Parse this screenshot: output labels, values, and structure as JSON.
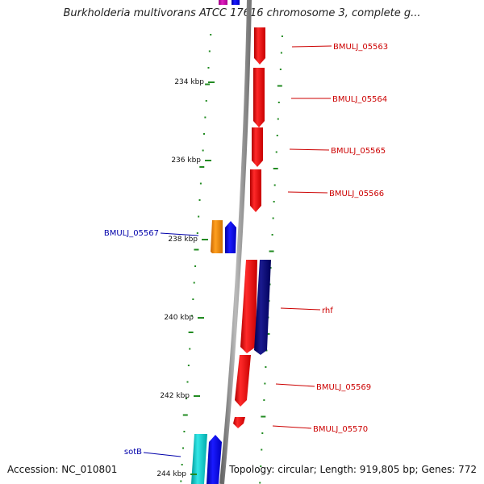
{
  "title": "Burkholderia multivorans ATCC 17616 chromosome 3, complete g...",
  "footer": {
    "accession": "Accession: NC_010801",
    "topology": "Topology: circular; Length: 919,805 bp; Genes: 772"
  },
  "ticks": [
    {
      "label": "234 kbp",
      "position_kbp": 234
    },
    {
      "label": "236 kbp",
      "position_kbp": 236
    },
    {
      "label": "238 kbp",
      "position_kbp": 238
    },
    {
      "label": "240 kbp",
      "position_kbp": 240
    },
    {
      "label": "242 kbp",
      "position_kbp": 242
    },
    {
      "label": "244 kbp",
      "position_kbp": 244
    }
  ],
  "gene_labels": [
    {
      "id": "BMULJ_05563",
      "text": "BMULJ_05563",
      "side": "right",
      "color": "#cc0000"
    },
    {
      "id": "BMULJ_05564",
      "text": "BMULJ_05564",
      "side": "right",
      "color": "#cc0000"
    },
    {
      "id": "BMULJ_05565",
      "text": "BMULJ_05565",
      "side": "right",
      "color": "#cc0000"
    },
    {
      "id": "BMULJ_05566",
      "text": "BMULJ_05566",
      "side": "right",
      "color": "#cc0000"
    },
    {
      "id": "BMULJ_05567",
      "text": "BMULJ_05567",
      "side": "left",
      "color": "#0000aa"
    },
    {
      "id": "rhf",
      "text": "rhf",
      "side": "right",
      "color": "#cc0000"
    },
    {
      "id": "BMULJ_05569",
      "text": "BMULJ_05569",
      "side": "right",
      "color": "#cc0000"
    },
    {
      "id": "BMULJ_05570",
      "text": "BMULJ_05570",
      "side": "right",
      "color": "#cc0000"
    },
    {
      "id": "sotB",
      "text": "sotB",
      "side": "left",
      "color": "#0000aa"
    }
  ],
  "colors": {
    "backbone": "#888888",
    "forward_gene": "#ff0000",
    "reverse_gene_blue": "#0000ff",
    "reverse_gene_navy": "#000080",
    "gene_orange": "#ff8c00",
    "gene_cyan": "#00cccc",
    "gene_magenta": "#cc00aa",
    "dash_green": "#228b22"
  }
}
